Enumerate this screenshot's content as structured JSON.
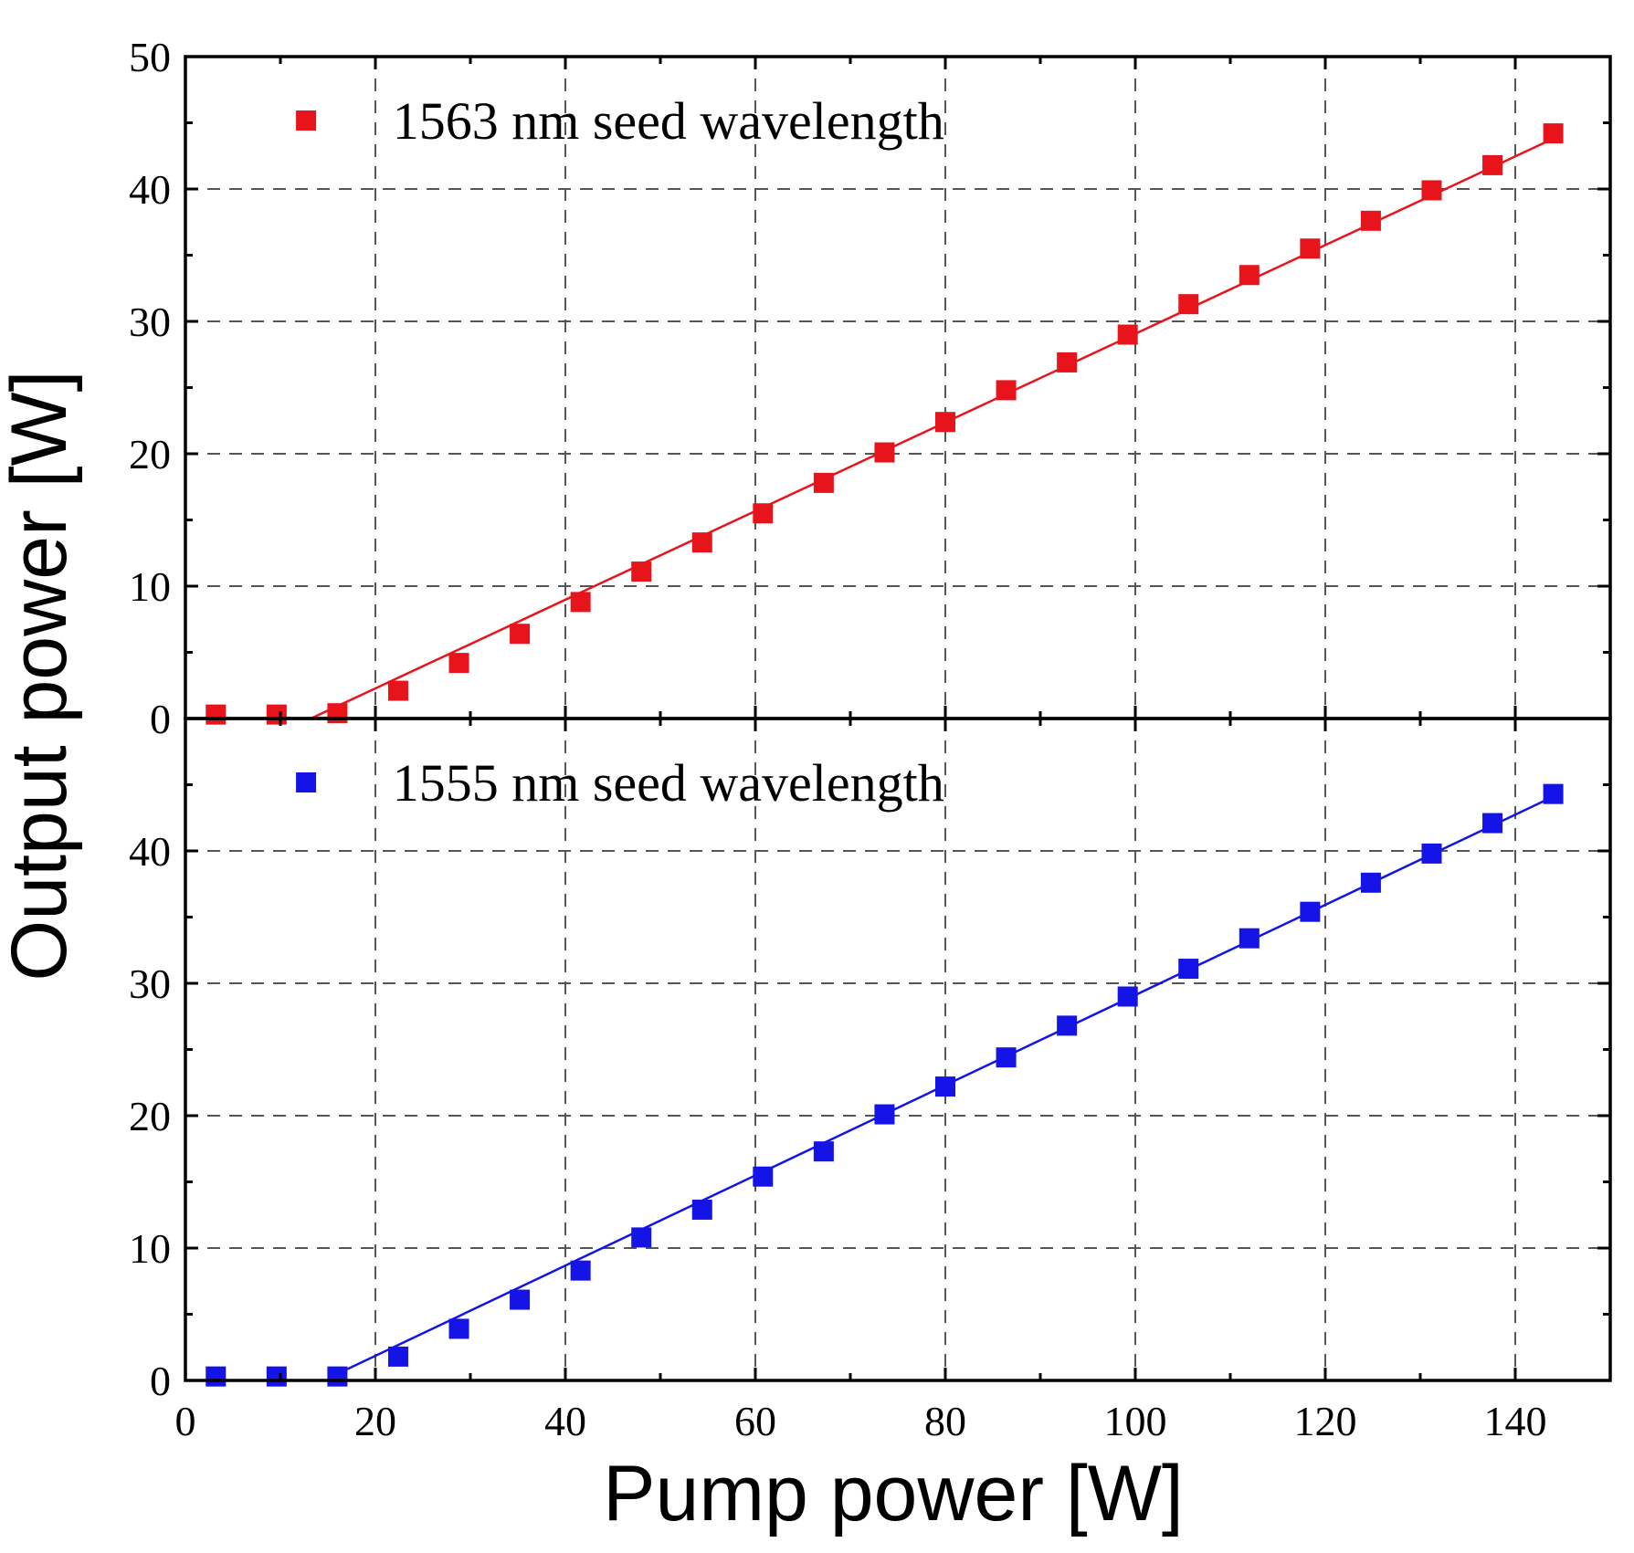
{
  "chart_data": {
    "type": "scatter",
    "xlabel": "Pump power [W]",
    "ylabel": "Output power [W]",
    "xlim": [
      0,
      150
    ],
    "x_ticks": [
      0,
      20,
      40,
      60,
      80,
      100,
      120,
      140
    ],
    "grid": true,
    "panels": [
      {
        "position": "top",
        "ylim": [
          0,
          50
        ],
        "y_ticks": [
          0,
          10,
          20,
          30,
          40,
          50
        ],
        "legend": "1563 nm seed wavelength",
        "legend_placement": "top-left",
        "color": "#e8141b",
        "x": [
          3.2,
          9.6,
          16.0,
          22.4,
          28.8,
          35.2,
          41.6,
          48.0,
          54.4,
          60.8,
          67.2,
          73.6,
          80.0,
          86.4,
          92.8,
          99.2,
          105.6,
          112.0,
          118.4,
          124.8,
          131.2,
          137.6,
          144.0
        ],
        "y": [
          0.3,
          0.3,
          0.4,
          2.1,
          4.2,
          6.4,
          8.8,
          11.1,
          13.3,
          15.5,
          17.8,
          20.1,
          22.4,
          24.8,
          26.9,
          29.0,
          31.3,
          33.5,
          35.5,
          37.6,
          39.9,
          41.8,
          44.2
        ],
        "fit_line": {
          "x": [
            13.2,
            144.0
          ],
          "y": [
            0.0,
            43.8
          ]
        }
      },
      {
        "position": "bottom",
        "ylim": [
          0,
          50
        ],
        "y_ticks": [
          0,
          10,
          20,
          30,
          40
        ],
        "legend": "1555 nm seed wavelength",
        "legend_placement": "top-left",
        "color": "#1414e6",
        "x": [
          3.2,
          9.6,
          16.0,
          22.4,
          28.8,
          35.2,
          41.6,
          48.0,
          54.4,
          60.8,
          67.2,
          73.6,
          80.0,
          86.4,
          92.8,
          99.2,
          105.6,
          112.0,
          118.4,
          124.8,
          131.2,
          137.6,
          144.0
        ],
        "y": [
          0.3,
          0.3,
          0.3,
          1.8,
          3.9,
          6.1,
          8.3,
          10.8,
          12.9,
          15.4,
          17.3,
          20.1,
          22.2,
          24.4,
          26.8,
          29.0,
          31.1,
          33.4,
          35.4,
          37.6,
          39.8,
          42.1,
          44.3
        ],
        "fit_line": {
          "x": [
            16.0,
            144.0
          ],
          "y": [
            0.5,
            44.1
          ]
        }
      }
    ]
  }
}
